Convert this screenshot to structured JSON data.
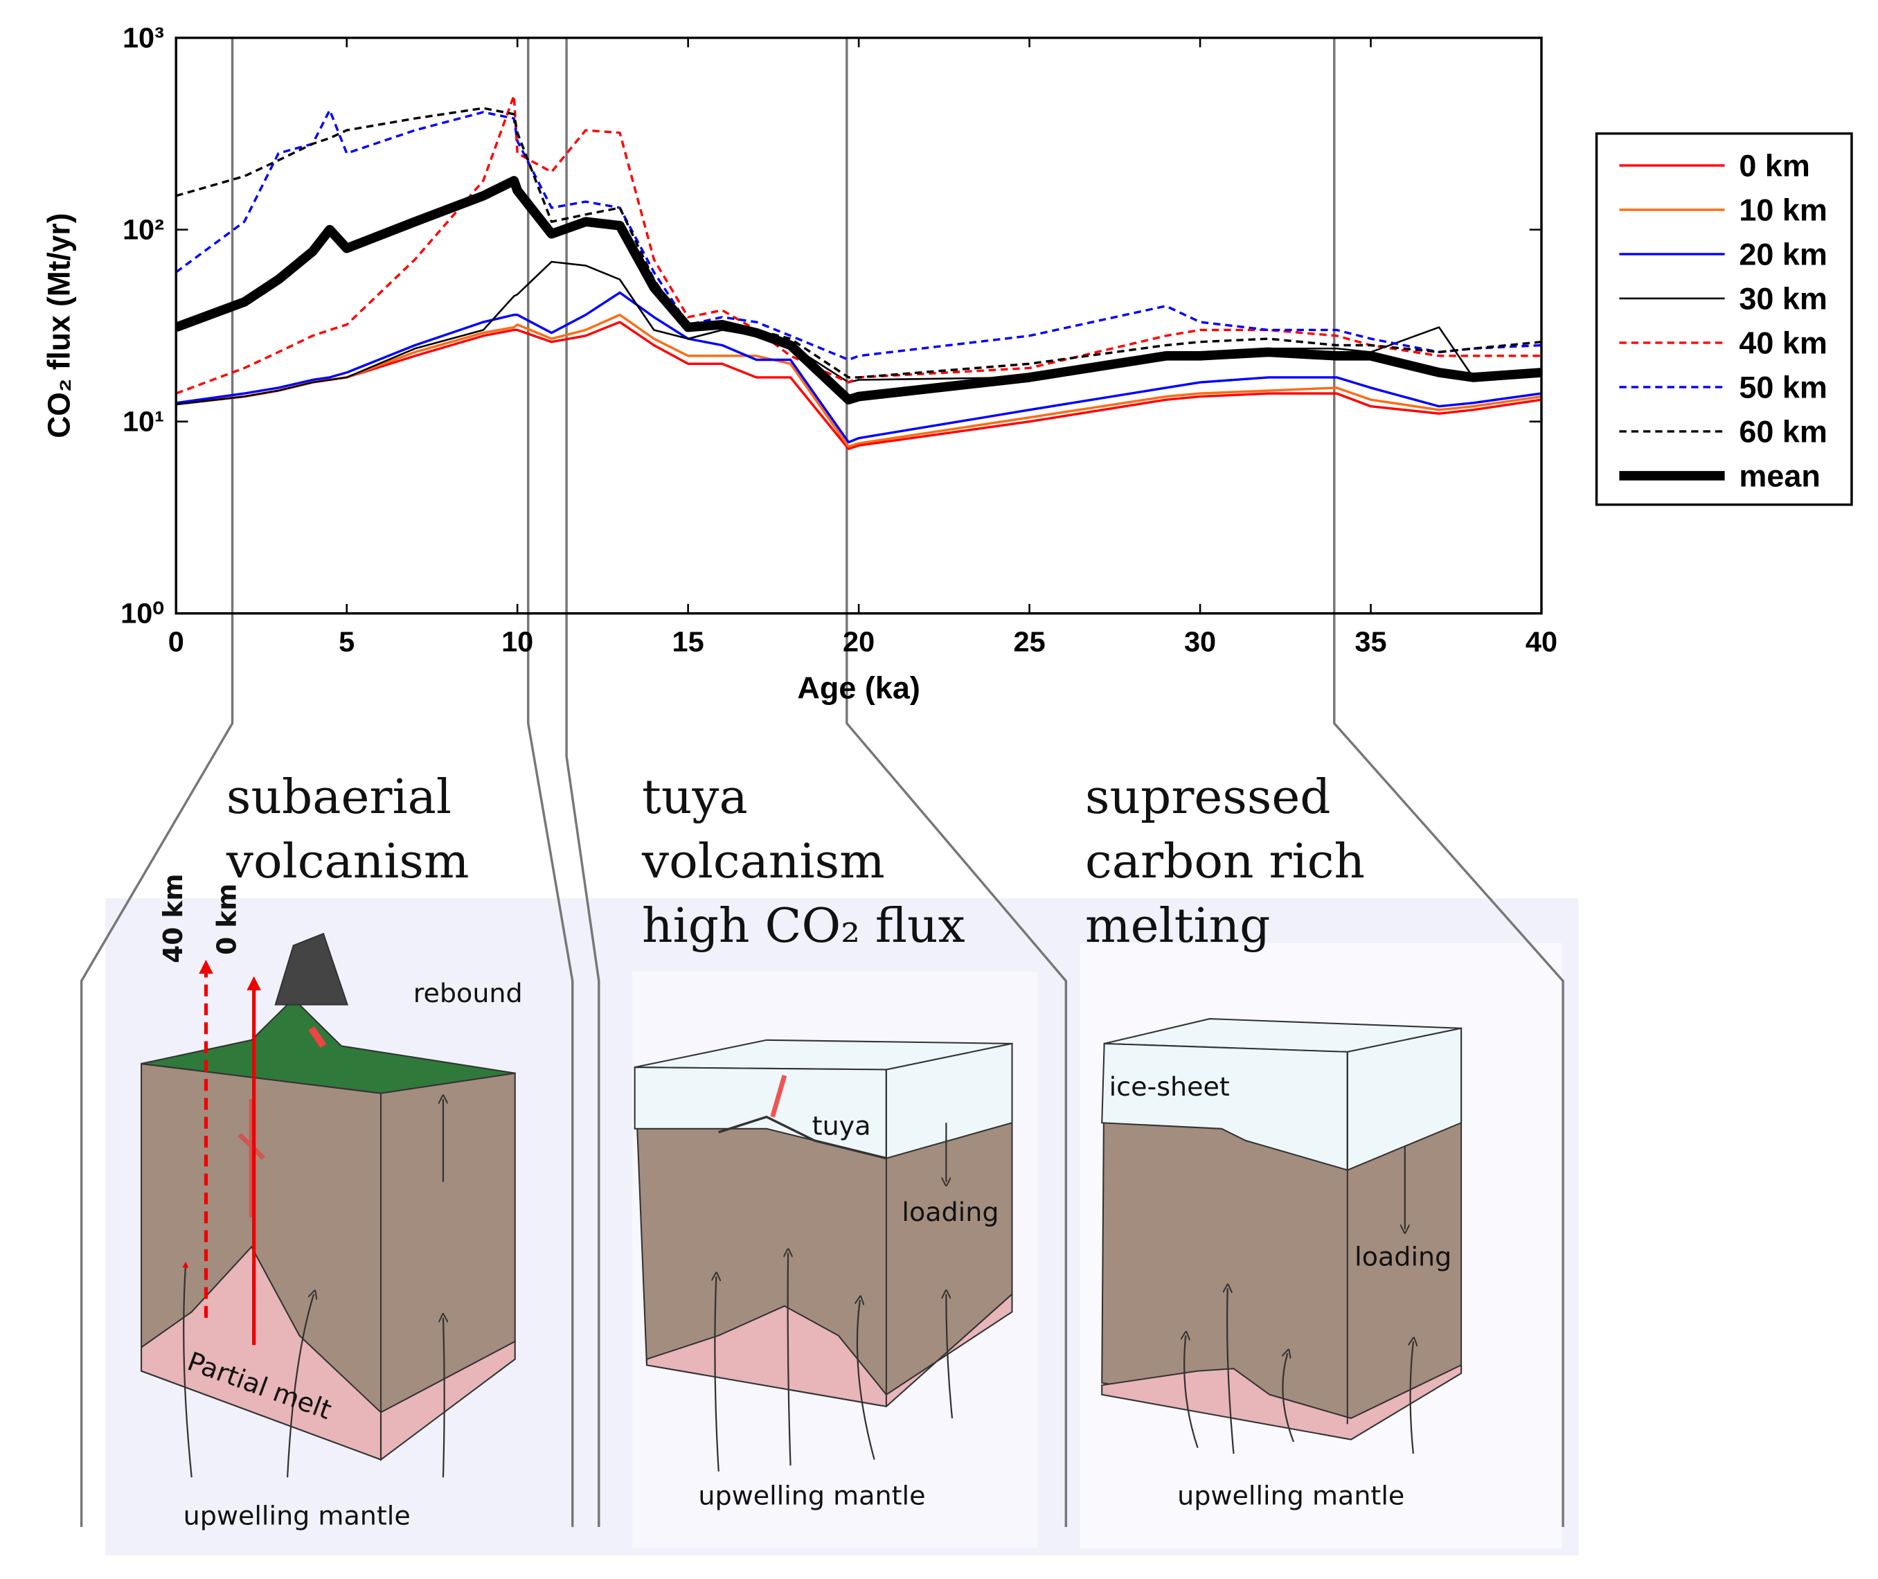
{
  "chart_data": {
    "type": "line",
    "xlabel": "Age (ka)",
    "ylabel": "CO₂ flux (Mt/yr)",
    "log_y": true,
    "legend": "outside right",
    "xlim": [
      0,
      40
    ],
    "xticks": [
      0,
      5,
      10,
      15,
      20,
      25,
      30,
      35,
      40
    ],
    "ylim": [
      1,
      1000
    ],
    "yticks": [
      {
        "value": 1,
        "label": "10⁰"
      },
      {
        "value": 10,
        "label": "10¹"
      },
      {
        "value": 100,
        "label": "10²"
      },
      {
        "value": 1000,
        "label": "10³"
      }
    ],
    "x": [
      0,
      2,
      3,
      4,
      4.5,
      5,
      7,
      9,
      9.9,
      10,
      11,
      12,
      13,
      14,
      15,
      16,
      17,
      18,
      19.7,
      20,
      25,
      29,
      30,
      32,
      34,
      35,
      37,
      38,
      40
    ],
    "series": [
      {
        "name": "0 km",
        "color": "#ff0000",
        "linestyle": "solid",
        "linewidth": 2,
        "values": [
          12.3,
          13.5,
          14.5,
          16,
          16.5,
          17,
          22,
          28,
          30,
          30,
          26,
          28,
          33,
          25,
          20,
          20,
          17,
          17,
          7.2,
          7.5,
          10,
          13,
          13.5,
          14,
          14,
          12,
          11,
          11.5,
          13
        ]
      },
      {
        "name": "10 km",
        "color": "#ff6a13",
        "linestyle": "solid",
        "linewidth": 2,
        "values": [
          12.3,
          13.5,
          14.5,
          16,
          16.5,
          17,
          23,
          29,
          31,
          32,
          27,
          30,
          36,
          27,
          22,
          22,
          22,
          20,
          7.4,
          7.7,
          10.5,
          13.5,
          14,
          14.5,
          15,
          13,
          11.5,
          12,
          13.5
        ]
      },
      {
        "name": "20 km",
        "color": "#0000ff",
        "linestyle": "solid",
        "linewidth": 2,
        "values": [
          12.5,
          14,
          15,
          16.5,
          17,
          18,
          25,
          33,
          36,
          36,
          29,
          36,
          47,
          35,
          27,
          25,
          21,
          21,
          7.8,
          8.2,
          11.5,
          15,
          16,
          17,
          17,
          15,
          12,
          12.5,
          14
        ]
      },
      {
        "name": "30 km",
        "color": "#000000",
        "linestyle": "solid",
        "linewidth": 1.5,
        "values": [
          12.3,
          13.5,
          14.5,
          16,
          16.5,
          17,
          24,
          30,
          45,
          46,
          68,
          65,
          55,
          30,
          27,
          30,
          28,
          25,
          16,
          16.5,
          17,
          22,
          22,
          24,
          24,
          23,
          31,
          17,
          null
        ]
      },
      {
        "name": "40 km",
        "color": "#ff0000",
        "linestyle": "dashed",
        "linewidth": 2,
        "values": [
          14,
          19,
          23,
          28,
          30,
          32,
          70,
          180,
          500,
          250,
          200,
          330,
          320,
          70,
          35,
          38,
          30,
          22,
          16,
          17,
          19,
          28,
          30,
          30,
          28,
          25,
          22,
          22,
          22
        ]
      },
      {
        "name": "50 km",
        "color": "#0000ff",
        "linestyle": "dashed",
        "linewidth": 2,
        "values": [
          60,
          110,
          250,
          280,
          420,
          250,
          330,
          410,
          380,
          290,
          130,
          140,
          130,
          60,
          32,
          35,
          33,
          28,
          21,
          22,
          28,
          40,
          33,
          30,
          30,
          27,
          23,
          24,
          25
        ]
      },
      {
        "name": "60 km",
        "color": "#000000",
        "linestyle": "dashed",
        "linewidth": 2,
        "values": [
          150,
          190,
          230,
          280,
          300,
          330,
          380,
          430,
          400,
          320,
          110,
          120,
          130,
          55,
          30,
          33,
          30,
          27,
          17,
          17,
          20,
          25,
          26,
          27,
          25,
          25,
          23,
          24,
          26
        ]
      },
      {
        "name": "mean",
        "color": "#000000",
        "linestyle": "solid",
        "linewidth": 8,
        "values": [
          31,
          42,
          55,
          77,
          100,
          80,
          110,
          150,
          180,
          160,
          95,
          110,
          105,
          50,
          31,
          32,
          29,
          25,
          13,
          13.5,
          17,
          22,
          22,
          23,
          22,
          22,
          18,
          17,
          18
        ]
      }
    ]
  },
  "panels": [
    {
      "title": [
        "subaerial",
        "volcanism"
      ],
      "labels": [
        "40 km",
        "0 km",
        "rebound",
        "Partial melt",
        "upwelling mantle"
      ]
    },
    {
      "title": [
        "tuya",
        "volcanism",
        "high CO₂ flux"
      ],
      "labels": [
        "tuya",
        "loading",
        "upwelling mantle"
      ]
    },
    {
      "title": [
        "supressed",
        "carbon rich",
        "melting"
      ],
      "labels": [
        "ice-sheet",
        "loading",
        "upwelling mantle"
      ]
    }
  ]
}
